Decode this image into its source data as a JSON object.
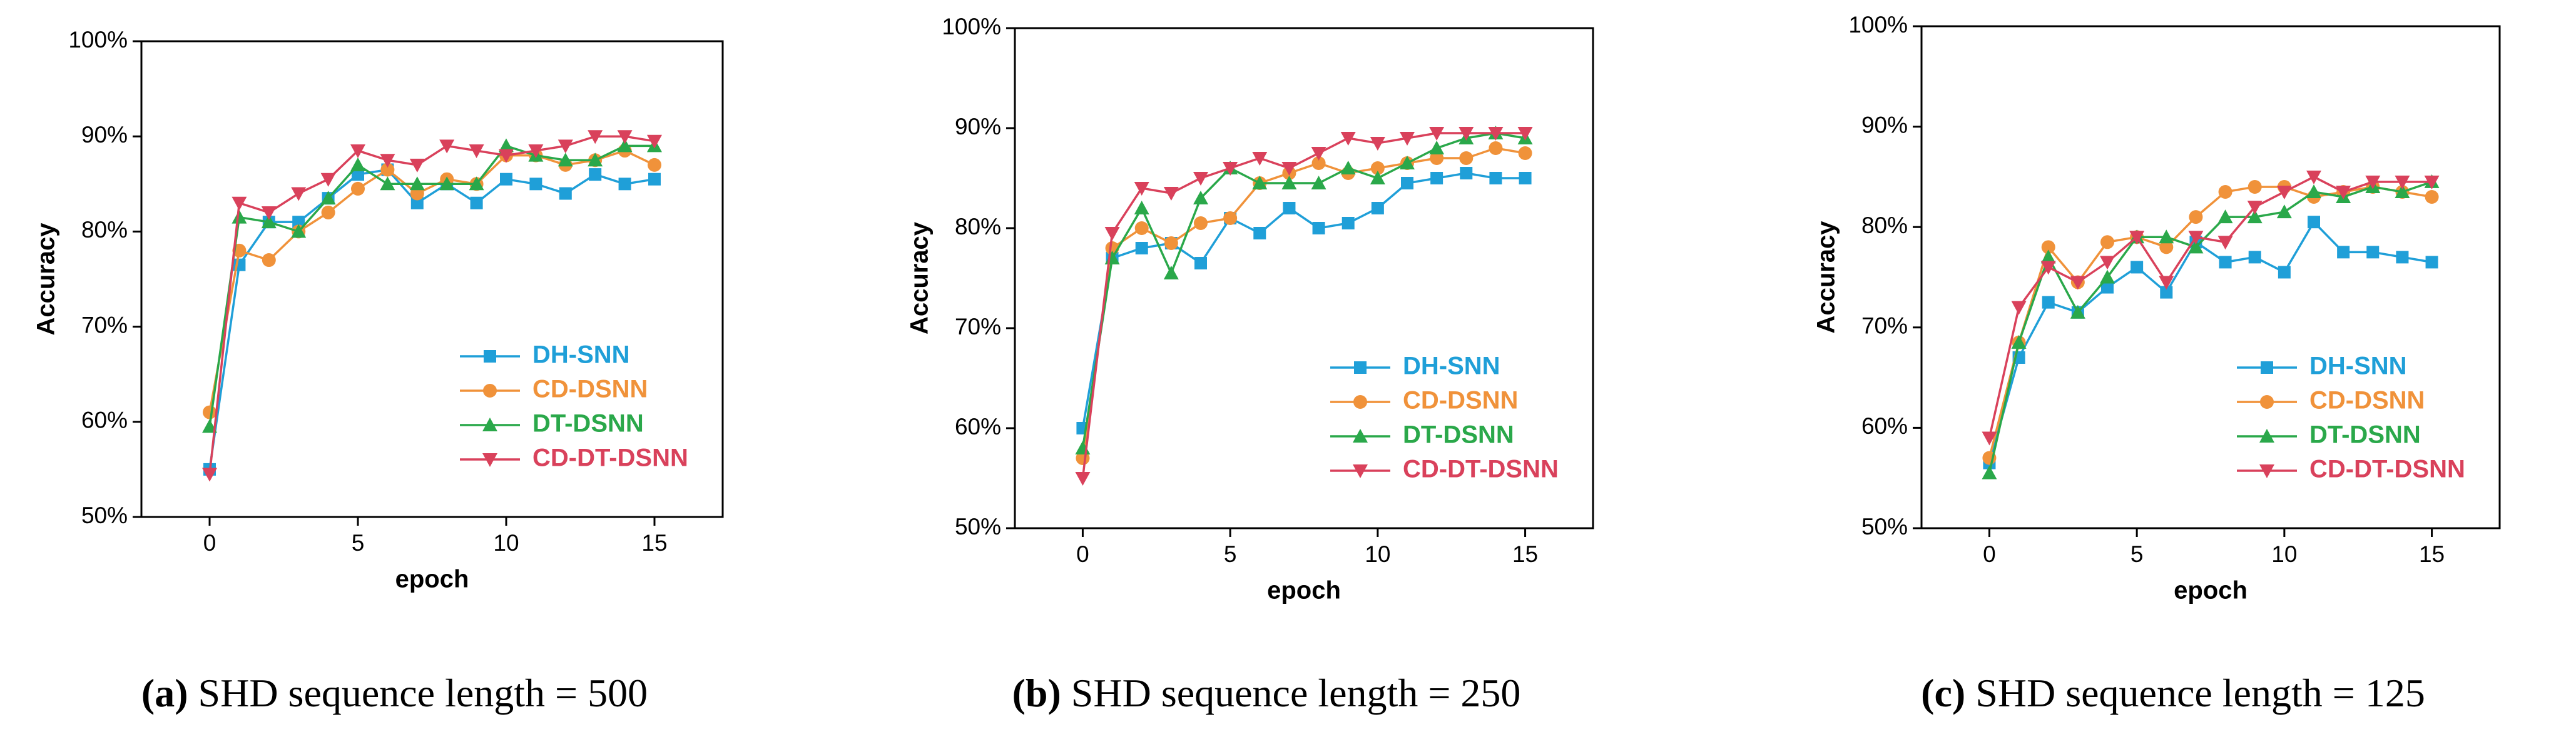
{
  "chart_data": [
    {
      "type": "line",
      "subfigure_label": "(a)",
      "caption": "SHD sequence length = 500",
      "xlabel": "epoch",
      "ylabel": "Accuracy",
      "x": [
        0,
        1,
        2,
        3,
        4,
        5,
        6,
        7,
        8,
        9,
        10,
        11,
        12,
        13,
        14,
        15
      ],
      "xlim": [
        -2.3,
        17.3
      ],
      "xticks": [
        0,
        5,
        10,
        15
      ],
      "ylim": [
        50,
        100
      ],
      "yticks": [
        {
          "value": 50,
          "label": "50%"
        },
        {
          "value": 60,
          "label": "60%"
        },
        {
          "value": 70,
          "label": "70%"
        },
        {
          "value": 80,
          "label": "80%"
        },
        {
          "value": 90,
          "label": "90%"
        },
        {
          "value": 100,
          "label": "100%"
        }
      ],
      "legend": "lower right",
      "series": [
        {
          "name": "DH-SNN",
          "color": "#1f9fd8",
          "marker": "square",
          "values": [
            55,
            76.5,
            81,
            81,
            83.5,
            86,
            86.5,
            83,
            85,
            83,
            85.5,
            85,
            84,
            86,
            85,
            85.5
          ]
        },
        {
          "name": "CD-DSNN",
          "color": "#f0923a",
          "marker": "circle",
          "values": [
            61,
            78,
            77,
            80,
            82,
            84.5,
            86.5,
            84,
            85.5,
            85,
            88,
            88,
            87,
            87.5,
            88.5,
            87
          ]
        },
        {
          "name": "DT-DSNN",
          "color": "#2aa84a",
          "marker": "triangle-up",
          "values": [
            59.5,
            81.5,
            81,
            80,
            83.5,
            87,
            85,
            85,
            85,
            85,
            89,
            88,
            87.5,
            87.5,
            89,
            89
          ]
        },
        {
          "name": "CD-DT-DSNN",
          "color": "#d9415b",
          "marker": "triangle-down",
          "values": [
            54.5,
            83,
            82,
            84,
            85.5,
            88.5,
            87.5,
            87,
            89,
            88.5,
            88,
            88.5,
            89,
            90,
            90,
            89.5
          ]
        }
      ]
    },
    {
      "type": "line",
      "subfigure_label": "(b)",
      "caption": "SHD sequence length = 250",
      "xlabel": "epoch",
      "ylabel": "Accuracy",
      "x": [
        0,
        1,
        2,
        3,
        4,
        5,
        6,
        7,
        8,
        9,
        10,
        11,
        12,
        13,
        14,
        15
      ],
      "xlim": [
        -2.3,
        17.3
      ],
      "xticks": [
        0,
        5,
        10,
        15
      ],
      "ylim": [
        50,
        100
      ],
      "yticks": [
        {
          "value": 50,
          "label": "50%"
        },
        {
          "value": 60,
          "label": "60%"
        },
        {
          "value": 70,
          "label": "70%"
        },
        {
          "value": 80,
          "label": "80%"
        },
        {
          "value": 90,
          "label": "90%"
        },
        {
          "value": 100,
          "label": "100%"
        }
      ],
      "legend": "lower right",
      "series": [
        {
          "name": "DH-SNN",
          "color": "#1f9fd8",
          "marker": "square",
          "values": [
            60,
            77,
            78,
            78.5,
            76.5,
            81,
            79.5,
            82,
            80,
            80.5,
            82,
            84.5,
            85,
            85.5,
            85,
            85
          ]
        },
        {
          "name": "CD-DSNN",
          "color": "#f0923a",
          "marker": "circle",
          "values": [
            57,
            78,
            80,
            78.5,
            80.5,
            81,
            84.5,
            85.5,
            86.5,
            85.5,
            86,
            86.5,
            87,
            87,
            88,
            87.5
          ]
        },
        {
          "name": "DT-DSNN",
          "color": "#2aa84a",
          "marker": "triangle-up",
          "values": [
            58,
            77,
            82,
            75.5,
            83,
            86,
            84.5,
            84.5,
            84.5,
            86,
            85,
            86.5,
            88,
            89,
            89.5,
            89
          ]
        },
        {
          "name": "CD-DT-DSNN",
          "color": "#d9415b",
          "marker": "triangle-down",
          "values": [
            55,
            79.5,
            84,
            83.5,
            85,
            86,
            87,
            86,
            87.5,
            89,
            88.5,
            89,
            89.5,
            89.5,
            89.5,
            89.5
          ]
        }
      ]
    },
    {
      "type": "line",
      "subfigure_label": "(c)",
      "caption": "SHD sequence length = 125",
      "xlabel": "epoch",
      "ylabel": "Accuracy",
      "x": [
        0,
        1,
        2,
        3,
        4,
        5,
        6,
        7,
        8,
        9,
        10,
        11,
        12,
        13,
        14,
        15
      ],
      "xlim": [
        -2.3,
        17.3
      ],
      "xticks": [
        0,
        5,
        10,
        15
      ],
      "ylim": [
        50,
        100
      ],
      "yticks": [
        {
          "value": 50,
          "label": "50%"
        },
        {
          "value": 60,
          "label": "60%"
        },
        {
          "value": 70,
          "label": "70%"
        },
        {
          "value": 80,
          "label": "80%"
        },
        {
          "value": 90,
          "label": "90%"
        },
        {
          "value": 100,
          "label": "100%"
        }
      ],
      "legend": "lower right",
      "series": [
        {
          "name": "DH-SNN",
          "color": "#1f9fd8",
          "marker": "square",
          "values": [
            56.5,
            67,
            72.5,
            71.5,
            74,
            76,
            73.5,
            78.5,
            76.5,
            77,
            75.5,
            80.5,
            77.5,
            77.5,
            77,
            76.5
          ]
        },
        {
          "name": "CD-DSNN",
          "color": "#f0923a",
          "marker": "circle",
          "values": [
            57,
            68.5,
            78,
            74.5,
            78.5,
            79,
            78,
            81,
            83.5,
            84,
            84,
            83,
            83.5,
            84,
            83.5,
            83
          ]
        },
        {
          "name": "DT-DSNN",
          "color": "#2aa84a",
          "marker": "triangle-up",
          "values": [
            55.5,
            68.5,
            77,
            71.5,
            75,
            79,
            79,
            78,
            81,
            81,
            81.5,
            83.5,
            83,
            84,
            83.5,
            84.5
          ]
        },
        {
          "name": "CD-DT-DSNN",
          "color": "#d9415b",
          "marker": "triangle-down",
          "values": [
            59,
            72,
            76,
            74.5,
            76.5,
            79,
            74.5,
            79,
            78.5,
            82,
            83.5,
            85,
            83.5,
            84.5,
            84.5,
            84.5
          ]
        }
      ]
    }
  ]
}
